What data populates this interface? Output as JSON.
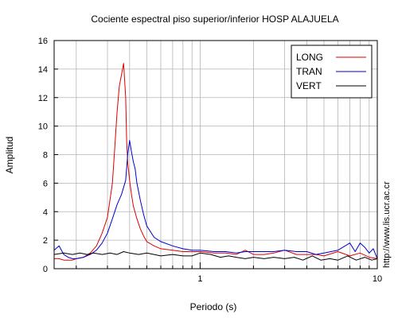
{
  "chart_data": {
    "type": "line",
    "title": "Cociente espectral piso superior/inferior  HOSP ALAJUELA",
    "xlabel": "Periodo (s)",
    "ylabel": "Amplitud",
    "x_scale": "log",
    "xlim": [
      0.15,
      10
    ],
    "ylim": [
      0,
      16
    ],
    "x_tick_labels": [
      "1",
      "10"
    ],
    "y_ticks": [
      0,
      2,
      4,
      6,
      8,
      10,
      12,
      14,
      16
    ],
    "grid": true,
    "legend_position": "top-right",
    "watermark": "http://www.lis.ucr.ac.cr",
    "series": [
      {
        "name": "LONG",
        "color": "#dd0000",
        "x": [
          0.15,
          0.16,
          0.17,
          0.18,
          0.19,
          0.2,
          0.22,
          0.24,
          0.26,
          0.28,
          0.3,
          0.32,
          0.33,
          0.34,
          0.35,
          0.36,
          0.37,
          0.38,
          0.385,
          0.39,
          0.4,
          0.41,
          0.42,
          0.44,
          0.46,
          0.48,
          0.5,
          0.55,
          0.6,
          0.7,
          0.8,
          0.9,
          1.0,
          1.2,
          1.4,
          1.6,
          1.8,
          2.0,
          2.3,
          2.6,
          3.0,
          3.5,
          4.0,
          4.5,
          5.0,
          6.0,
          7.0,
          8.0,
          9.0,
          10.0
        ],
        "y": [
          0.7,
          0.7,
          0.6,
          0.6,
          0.6,
          0.7,
          0.8,
          1.1,
          1.6,
          2.5,
          3.6,
          6.0,
          8.5,
          11.0,
          12.8,
          13.6,
          14.4,
          12.0,
          9.0,
          7.5,
          6.2,
          5.2,
          4.4,
          3.5,
          2.8,
          2.3,
          1.9,
          1.6,
          1.4,
          1.3,
          1.2,
          1.2,
          1.2,
          1.1,
          1.1,
          1.0,
          1.3,
          1.0,
          1.0,
          1.1,
          1.3,
          1.0,
          1.0,
          1.0,
          0.9,
          1.2,
          0.9,
          1.1,
          0.8,
          0.7
        ]
      },
      {
        "name": "TRAN",
        "color": "#0000cc",
        "x": [
          0.15,
          0.16,
          0.17,
          0.18,
          0.19,
          0.2,
          0.22,
          0.24,
          0.26,
          0.28,
          0.3,
          0.32,
          0.34,
          0.36,
          0.38,
          0.39,
          0.4,
          0.41,
          0.42,
          0.43,
          0.44,
          0.46,
          0.48,
          0.5,
          0.55,
          0.6,
          0.7,
          0.8,
          0.9,
          1.0,
          1.2,
          1.4,
          1.6,
          1.8,
          2.0,
          2.3,
          2.6,
          3.0,
          3.5,
          4.0,
          4.5,
          5.0,
          6.0,
          7.0,
          7.5,
          8.0,
          8.5,
          9.0,
          9.5,
          10.0
        ],
        "y": [
          1.3,
          1.6,
          1.0,
          0.8,
          0.7,
          0.7,
          0.8,
          1.0,
          1.3,
          1.8,
          2.5,
          3.5,
          4.5,
          5.2,
          6.2,
          8.0,
          9.0,
          8.2,
          7.5,
          7.0,
          6.0,
          4.8,
          3.8,
          3.0,
          2.2,
          1.9,
          1.6,
          1.4,
          1.3,
          1.3,
          1.2,
          1.2,
          1.1,
          1.2,
          1.2,
          1.2,
          1.2,
          1.3,
          1.2,
          1.2,
          1.0,
          1.1,
          1.3,
          1.8,
          1.2,
          1.8,
          1.5,
          1.1,
          1.4,
          0.7
        ]
      },
      {
        "name": "VERT",
        "color": "#000000",
        "x": [
          0.15,
          0.17,
          0.19,
          0.21,
          0.23,
          0.25,
          0.28,
          0.31,
          0.34,
          0.37,
          0.4,
          0.45,
          0.5,
          0.55,
          0.6,
          0.7,
          0.8,
          0.9,
          1.0,
          1.15,
          1.3,
          1.45,
          1.6,
          1.8,
          2.0,
          2.3,
          2.6,
          3.0,
          3.4,
          3.8,
          4.3,
          4.8,
          5.4,
          6.0,
          6.8,
          7.6,
          8.5,
          9.3,
          10.0
        ],
        "y": [
          1.0,
          1.1,
          1.0,
          1.1,
          1.0,
          1.1,
          1.0,
          1.1,
          1.0,
          1.2,
          1.1,
          1.0,
          1.1,
          1.0,
          0.9,
          1.0,
          0.9,
          0.9,
          1.1,
          1.0,
          0.8,
          0.9,
          0.8,
          0.7,
          0.8,
          0.7,
          0.8,
          0.7,
          0.8,
          0.6,
          0.9,
          0.6,
          0.7,
          0.6,
          0.9,
          0.6,
          0.8,
          0.6,
          0.7
        ]
      }
    ]
  }
}
